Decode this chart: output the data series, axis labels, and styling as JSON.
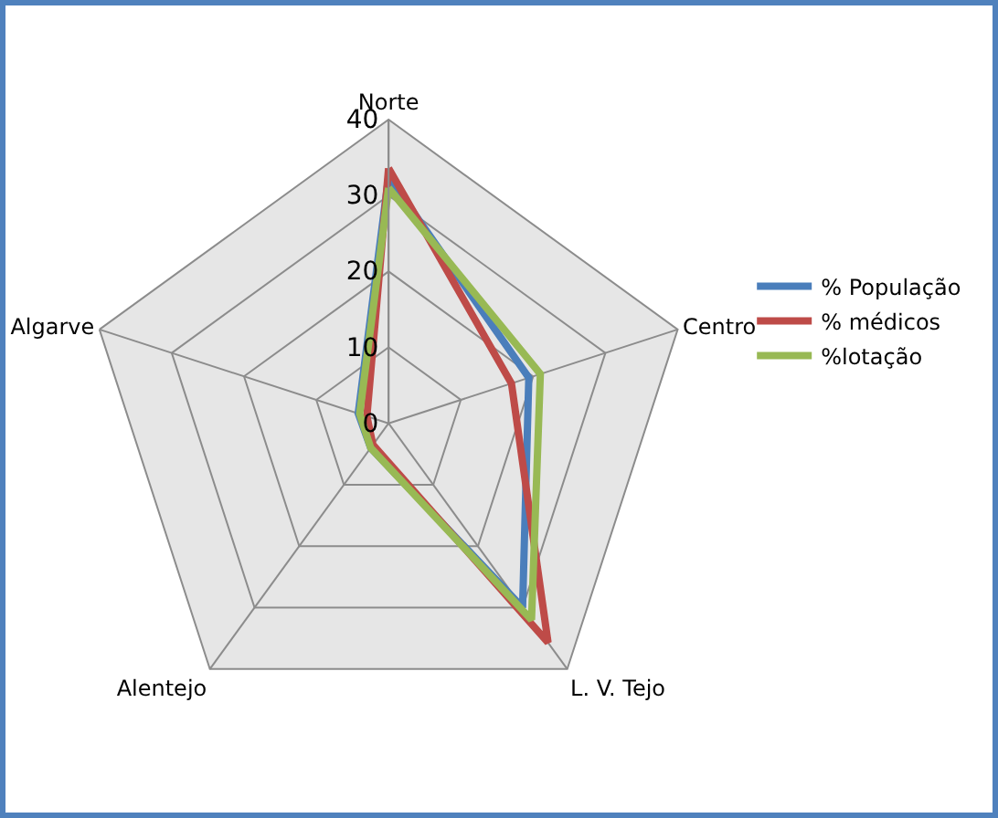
{
  "chart_data": {
    "type": "radar",
    "categories": [
      "Norte",
      "Centro",
      "L. V. Tejo",
      "Alentejo",
      "Algarve"
    ],
    "series": [
      {
        "name": "% População",
        "color": "#4a7ebb",
        "values": [
          32.5,
          19.4,
          30,
          4,
          4.2
        ]
      },
      {
        "name": "% médicos",
        "color": "#be4b48",
        "values": [
          33.6,
          17,
          35.7,
          3.5,
          3
        ]
      },
      {
        "name": "%lotação",
        "color": "#98b954",
        "values": [
          31,
          21,
          32,
          4,
          4
        ]
      }
    ],
    "ylim": [
      0,
      40
    ],
    "yticks": [
      0,
      10,
      20,
      30,
      40
    ],
    "grid": true,
    "legend": "right",
    "marker": "none"
  }
}
